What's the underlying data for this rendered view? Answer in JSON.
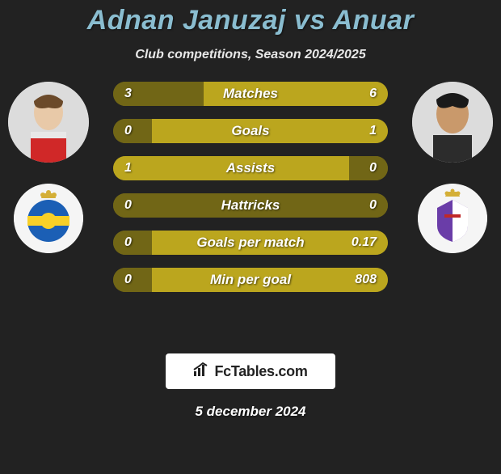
{
  "title": "Adnan Januzaj vs Anuar",
  "subtitle": "Club competitions, Season 2024/2025",
  "date": "5 december 2024",
  "logo": {
    "icon": "📊",
    "text": "FcTables.com"
  },
  "colors": {
    "title": "#8abdd0",
    "subtitle": "#e8e8e8",
    "background": "#222222",
    "bar_bg": "#716616",
    "bar_fill": "#bba61e",
    "text": "#ffffff"
  },
  "players": {
    "left": {
      "name": "Adnan Januzaj",
      "avatar_bg": "#dcdcdc",
      "crest_bg": "#f5f5f5",
      "crest_accent1": "#1b5fb5",
      "crest_accent2": "#f8d027"
    },
    "right": {
      "name": "Anuar",
      "avatar_bg": "#dcdcdc",
      "crest_bg": "#f5f5f5",
      "crest_accent1": "#6a3da8",
      "crest_accent2": "#d4af37"
    }
  },
  "stats": [
    {
      "label": "Matches",
      "left_val": "3",
      "right_val": "6",
      "left_pct": 33,
      "right_pct": 67
    },
    {
      "label": "Goals",
      "left_val": "0",
      "right_val": "1",
      "left_pct": 14,
      "right_pct": 86
    },
    {
      "label": "Assists",
      "left_val": "1",
      "right_val": "0",
      "left_pct": 86,
      "right_pct": 14
    },
    {
      "label": "Hattricks",
      "left_val": "0",
      "right_val": "0",
      "left_pct": 50,
      "right_pct": 50
    },
    {
      "label": "Goals per match",
      "left_val": "0",
      "right_val": "0.17",
      "left_pct": 14,
      "right_pct": 86
    },
    {
      "label": "Min per goal",
      "left_val": "0",
      "right_val": "808",
      "left_pct": 14,
      "right_pct": 86
    }
  ],
  "bar_style": {
    "height": 30,
    "gap": 16,
    "radius": 15,
    "font_size": 17
  }
}
